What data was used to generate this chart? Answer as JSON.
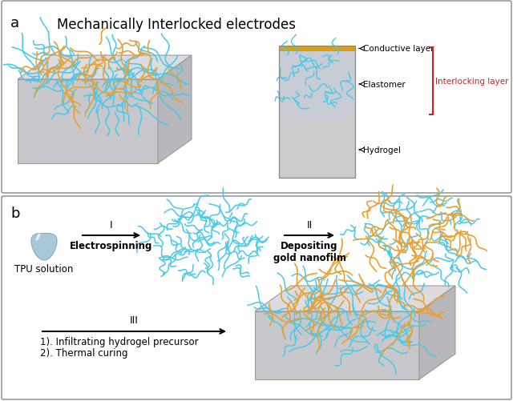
{
  "title": "Mechanically Interlocked electrodes",
  "panel_a_label": "a",
  "panel_b_label": "b",
  "cyan_color": "#4BC8E8",
  "orange_color": "#E8A030",
  "gold_color": "#D4A017",
  "gray_face": "#C8C8CC",
  "gray_top": "#DCDCE0",
  "gray_right": "#B8B8BC",
  "gray_cs_body": "#CCCCCE",
  "gray_cs_elast": "#C8CDD5",
  "red_color": "#CC2222",
  "bg_color": "#FFFFFF",
  "label_conductive": "Conductive layer",
  "label_elastomer": "Elastomer",
  "label_hydrogel": "Hydrogel",
  "label_interlocking": "Interlocking layer",
  "label_tpu": "TPU solution",
  "label_step1": "Electrospinning",
  "label_step2": "Depositing\ngold nanofilm",
  "label_step3_1": "1). Infiltrating hydrogel precursor",
  "label_step3_2": "2). Thermal curing",
  "step_I": "I",
  "step_II": "II",
  "step_III": "III",
  "figsize": [
    6.4,
    5.02
  ],
  "dpi": 100
}
